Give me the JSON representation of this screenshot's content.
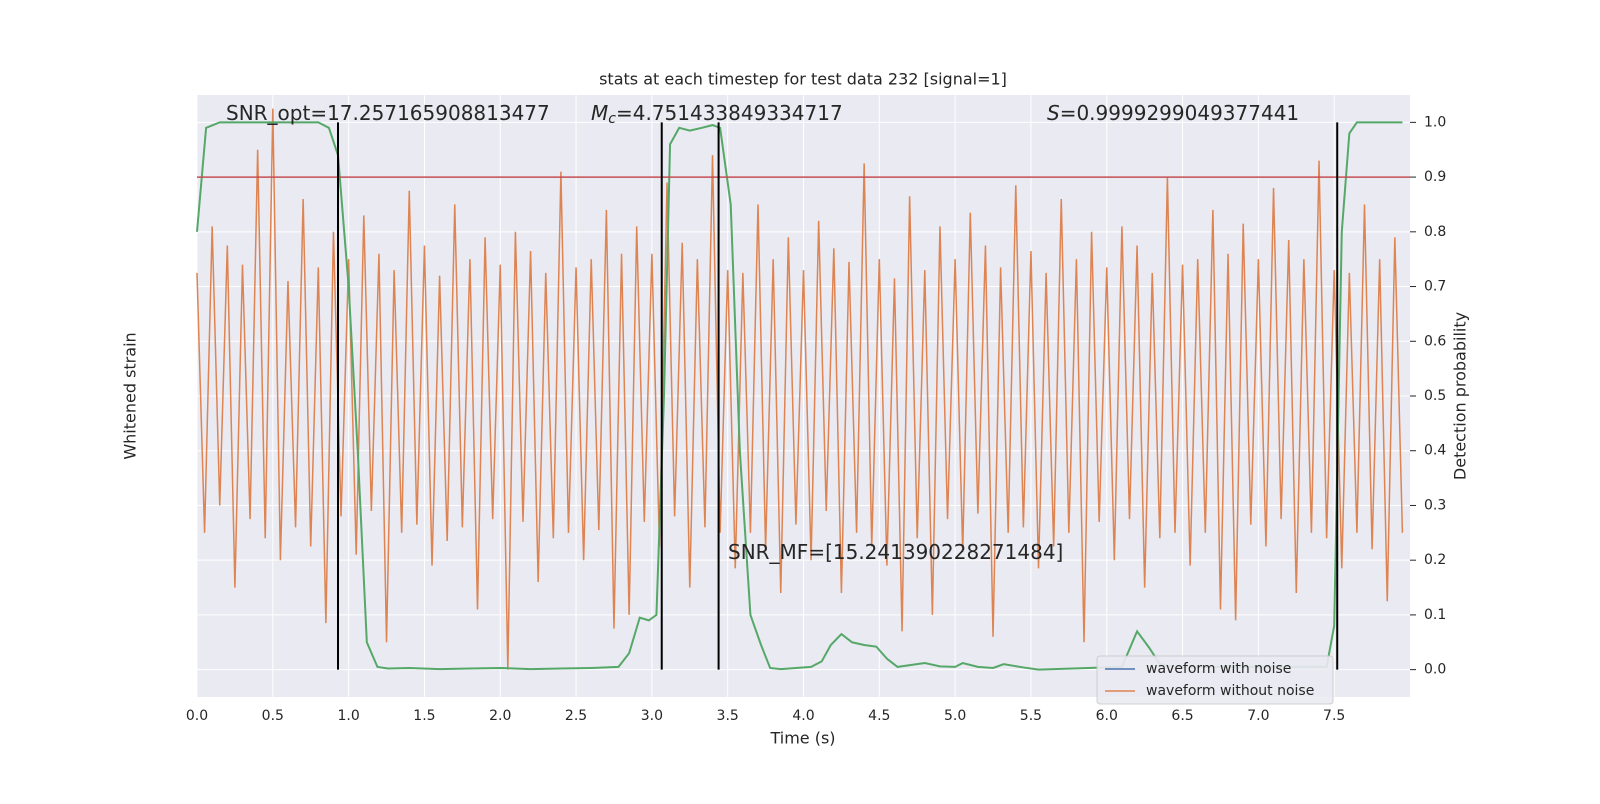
{
  "chart_data": {
    "type": "line",
    "title": "stats at each timestep for test data 232 [signal=1]",
    "xlabel": "Time (s)",
    "ylabel": "Whitened strain",
    "y2label": "Detection probability",
    "xlim": [
      0,
      8
    ],
    "xticks": [
      {
        "value": 0,
        "label": "0.0"
      },
      0.5,
      {
        "value": 1,
        "label": "1.0"
      },
      1.5,
      {
        "value": 2,
        "label": "2.0"
      },
      2.5,
      {
        "value": 3,
        "label": "3.0"
      },
      3.5,
      {
        "value": 4,
        "label": "4.0"
      },
      4.5,
      {
        "value": 5,
        "label": "5.0"
      },
      5.5,
      {
        "value": 6,
        "label": "6.0"
      },
      6.5,
      {
        "value": 7,
        "label": "7.0"
      },
      7.5
    ],
    "ylim": [
      -1.1,
      1.1
    ],
    "y2lim": [
      -0.05,
      1.05
    ],
    "y2ticks": [
      {
        "value": 0,
        "label": "0.0"
      },
      0.1,
      0.2,
      0.3,
      0.4,
      0.5,
      0.6,
      0.7,
      0.8,
      0.9,
      {
        "value": 1,
        "label": "1.0"
      }
    ],
    "grid": true,
    "legend": "lower right",
    "annotations": [
      {
        "text": "SNR_opt=17.257165908813477"
      },
      {
        "symbol": "M",
        "subscript": "c",
        "text": "=4.751433849334717"
      },
      {
        "symbol": "S",
        "text": "=0.9999299049377441"
      },
      {
        "text": "SNR_MF=[15.241390228271484]"
      }
    ],
    "threshold": {
      "value": 0.9,
      "color": "#c44e52",
      "axis": "y2"
    },
    "vlines": {
      "x": [
        0.93,
        3.065,
        3.44,
        7.52
      ],
      "color": "#000000"
    },
    "series": [
      {
        "name": "waveform with noise",
        "color": "#4c72b0"
      },
      {
        "name": "waveform without noise",
        "color": "#dd8452",
        "x": [
          0,
          0.05,
          0.1,
          0.15,
          0.2,
          0.25,
          0.3,
          0.35,
          0.4,
          0.45,
          0.5,
          0.55,
          0.6,
          0.65,
          0.7,
          0.75,
          0.8,
          0.85,
          0.9,
          0.95,
          1,
          1.05,
          1.1,
          1.15,
          1.2,
          1.25,
          1.3,
          1.35,
          1.4,
          1.45,
          1.5,
          1.55,
          1.6,
          1.65,
          1.7,
          1.75,
          1.8,
          1.85,
          1.9,
          1.95,
          2,
          2.05,
          2.1,
          2.15,
          2.2,
          2.25,
          2.3,
          2.35,
          2.4,
          2.45,
          2.5,
          2.55,
          2.6,
          2.65,
          2.7,
          2.75,
          2.8,
          2.85,
          2.9,
          2.95,
          3,
          3.05,
          3.1,
          3.15,
          3.2,
          3.25,
          3.3,
          3.35,
          3.4,
          3.45,
          3.5,
          3.55,
          3.6,
          3.65,
          3.7,
          3.75,
          3.8,
          3.85,
          3.9,
          3.95,
          4,
          4.05,
          4.1,
          4.15,
          4.2,
          4.25,
          4.3,
          4.35,
          4.4,
          4.45,
          4.5,
          4.55,
          4.6,
          4.65,
          4.7,
          4.75,
          4.8,
          4.85,
          4.9,
          4.95,
          5,
          5.05,
          5.1,
          5.15,
          5.2,
          5.25,
          5.3,
          5.35,
          5.4,
          5.45,
          5.5,
          5.55,
          5.6,
          5.65,
          5.7,
          5.75,
          5.8,
          5.85,
          5.9,
          5.95,
          6,
          6.05,
          6.1,
          6.15,
          6.2,
          6.25,
          6.3,
          6.35,
          6.4,
          6.45,
          6.5,
          6.55,
          6.6,
          6.65,
          6.7,
          6.75,
          6.8,
          6.85,
          6.9,
          6.95,
          7,
          7.05,
          7.1,
          7.15,
          7.2,
          7.25,
          7.3,
          7.35,
          7.4,
          7.45,
          7.5,
          7.55,
          7.6,
          7.65,
          7.7,
          7.75,
          7.8,
          7.85,
          7.9,
          7.95
        ],
        "values": [
          0.45,
          -0.5,
          0.62,
          -0.4,
          0.55,
          -0.7,
          0.48,
          -0.45,
          0.9,
          -0.52,
          1.05,
          -0.6,
          0.42,
          -0.48,
          0.72,
          -0.55,
          0.47,
          -0.83,
          0.6,
          -0.44,
          0.5,
          -0.58,
          0.66,
          -0.42,
          0.52,
          -0.9,
          0.46,
          -0.5,
          0.75,
          -0.47,
          0.55,
          -0.62,
          0.44,
          -0.53,
          0.7,
          -0.48,
          0.5,
          -0.78,
          0.58,
          -0.45,
          0.48,
          -1.0,
          0.6,
          -0.46,
          0.53,
          -0.68,
          0.45,
          -0.52,
          0.82,
          -0.5,
          0.47,
          -0.6,
          0.5,
          -0.49,
          0.68,
          -0.85,
          0.52,
          -0.8,
          0.62,
          -0.46,
          0.52,
          -0.55,
          0.78,
          -0.44,
          0.56,
          -0.7,
          0.5,
          -0.48,
          0.88,
          -0.5,
          0.46,
          -0.63,
          0.45,
          -0.5,
          0.7,
          -0.56,
          0.5,
          -0.72,
          0.58,
          -0.47,
          0.46,
          -0.6,
          0.64,
          -0.42,
          0.54,
          -0.72,
          0.49,
          -0.5,
          0.85,
          -0.55,
          0.5,
          -0.62,
          0.43,
          -0.86,
          0.73,
          -0.52,
          0.46,
          -0.8,
          0.62,
          -0.45,
          0.5,
          -0.57,
          0.67,
          -0.43,
          0.55,
          -0.88,
          0.47,
          -0.5,
          0.77,
          -0.48,
          0.53,
          -0.63,
          0.45,
          -0.55,
          0.72,
          -0.5,
          0.5,
          -0.9,
          0.6,
          -0.46,
          0.47,
          -0.6,
          0.62,
          -0.45,
          0.55,
          -0.7,
          0.45,
          -0.52,
          0.8,
          -0.5,
          0.48,
          -0.62,
          0.5,
          -0.5,
          0.68,
          -0.78,
          0.52,
          -0.82,
          0.63,
          -0.47,
          0.5,
          -0.55,
          0.76,
          -0.45,
          0.57,
          -0.72,
          0.5,
          -0.5,
          0.86,
          -0.52,
          0.46,
          -0.63,
          0.45,
          -0.5,
          0.7,
          -0.56,
          0.5,
          -0.75,
          0.58,
          -0.5
        ]
      },
      {
        "name": "detection probability",
        "color": "#55a868",
        "axis": "y2",
        "x": [
          0,
          0.06,
          0.15,
          0.25,
          0.4,
          0.55,
          0.7,
          0.8,
          0.87,
          0.93,
          1.0,
          1.06,
          1.12,
          1.19,
          1.26,
          1.4,
          1.6,
          1.8,
          2.0,
          2.2,
          2.4,
          2.6,
          2.78,
          2.85,
          2.92,
          2.98,
          3.03,
          3.08,
          3.12,
          3.18,
          3.25,
          3.33,
          3.4,
          3.45,
          3.52,
          3.58,
          3.65,
          3.72,
          3.78,
          3.85,
          4.05,
          4.12,
          4.18,
          4.25,
          4.32,
          4.4,
          4.48,
          4.55,
          4.62,
          4.8,
          4.9,
          5.0,
          5.05,
          5.15,
          5.25,
          5.32,
          5.45,
          5.55,
          6.1,
          6.2,
          6.28,
          6.35,
          6.45,
          7.45,
          7.5,
          7.55,
          7.6,
          7.65,
          7.95
        ],
        "values": [
          0.8,
          0.99,
          1.0,
          1.0,
          1.0,
          1.0,
          1.0,
          1.0,
          0.99,
          0.94,
          0.7,
          0.4,
          0.05,
          0.005,
          0.002,
          0.003,
          0.001,
          0.002,
          0.003,
          0.001,
          0.002,
          0.003,
          0.005,
          0.03,
          0.095,
          0.09,
          0.1,
          0.5,
          0.96,
          0.99,
          0.985,
          0.99,
          0.995,
          0.99,
          0.85,
          0.4,
          0.1,
          0.045,
          0.003,
          0.001,
          0.005,
          0.015,
          0.045,
          0.065,
          0.05,
          0.045,
          0.042,
          0.02,
          0.005,
          0.012,
          0.006,
          0.005,
          0.012,
          0.005,
          0.003,
          0.01,
          0.004,
          0.0,
          0.005,
          0.07,
          0.04,
          0.01,
          0.005,
          0.005,
          0.08,
          0.8,
          0.98,
          1.0,
          1.0
        ]
      }
    ]
  }
}
